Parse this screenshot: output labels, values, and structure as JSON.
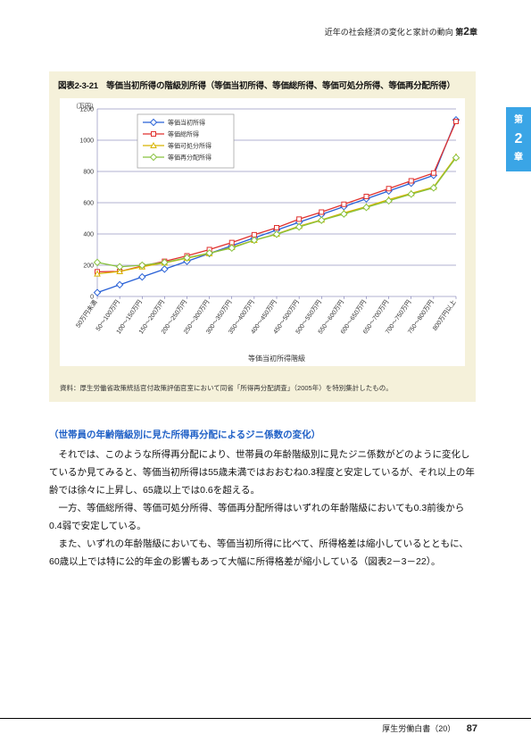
{
  "header": {
    "running_head": "近年の社会経済の変化と家計の動向",
    "chapter_label": "第",
    "chapter_num": "2",
    "chapter_suffix": "章"
  },
  "side_tab": {
    "line1": "第",
    "big": "2",
    "line3": "章"
  },
  "chart": {
    "type": "line",
    "title": "図表2-3-21　等価当初所得の階級別所得（等価当初所得、等価総所得、等価可処分所得、等価再分配所得）",
    "y_unit": "（万円）",
    "ylim": [
      0,
      1200
    ],
    "ytick_step": 200,
    "yticks": [
      0,
      200,
      400,
      600,
      800,
      1000,
      1200
    ],
    "x_axis_label": "等価当初所得階級",
    "categories": [
      "50万円未満",
      "50～100万円",
      "100～150万円",
      "150～200万円",
      "200～250万円",
      "250～300万円",
      "300～350万円",
      "350～400万円",
      "400～450万円",
      "450～500万円",
      "500～550万円",
      "550～600万円",
      "600～650万円",
      "650～700万円",
      "700～750万円",
      "750～800万円",
      "800万円以上"
    ],
    "legend_labels": [
      "等価当初所得",
      "等価総所得",
      "等価可処分所得",
      "等価再分配所得"
    ],
    "series_colors": {
      "s1": "#2860d6",
      "s2": "#e0322f",
      "s3": "#d8b400",
      "s4": "#88c23f"
    },
    "marker_size": 2.5,
    "line_width": 1.3,
    "grid_color": "#1e1e80",
    "grid_width": 0.35,
    "background_color": "#ffffff",
    "panel_color": "#f5f1da",
    "legend_border": "#999999",
    "series": {
      "s1": [
        25,
        75,
        125,
        175,
        225,
        275,
        325,
        375,
        425,
        475,
        525,
        575,
        625,
        675,
        725,
        775,
        1130
      ],
      "s2": [
        158,
        160,
        195,
        225,
        260,
        300,
        345,
        395,
        440,
        495,
        540,
        590,
        640,
        690,
        740,
        790,
        1120
      ],
      "s3": [
        145,
        160,
        190,
        215,
        245,
        275,
        315,
        360,
        400,
        450,
        490,
        535,
        575,
        620,
        660,
        700,
        895
      ],
      "s4": [
        218,
        190,
        200,
        218,
        248,
        278,
        310,
        360,
        398,
        445,
        488,
        528,
        570,
        612,
        655,
        695,
        888
      ]
    },
    "footnote": "資料：厚生労働省政策統括官付政策評価官室において同省「所得再分配調査」（2005年）を特別集計したもの。"
  },
  "subhead": "（世帯員の年齢階級別に見た所得再分配によるジニ係数の変化）",
  "paragraphs": [
    "それでは、このような所得再分配により、世帯員の年齢階級別に見たジニ係数がどのように変化しているか見てみると、等価当初所得は55歳未満ではおおむね0.3程度と安定しているが、それ以上の年齢では徐々に上昇し、65歳以上では0.6を超える。",
    "一方、等価総所得、等価可処分所得、等価再分配所得はいずれの年齢階級においても0.3前後から0.4弱で安定している。",
    "また、いずれの年齢階級においても、等価当初所得に比べて、所得格差は縮小しているとともに、60歳以上では特に公的年金の影響もあって大幅に所得格差が縮小している（図表2－3－22）。"
  ],
  "footer": {
    "doc_title": "厚生労働白書（20）",
    "page_num": "87"
  }
}
